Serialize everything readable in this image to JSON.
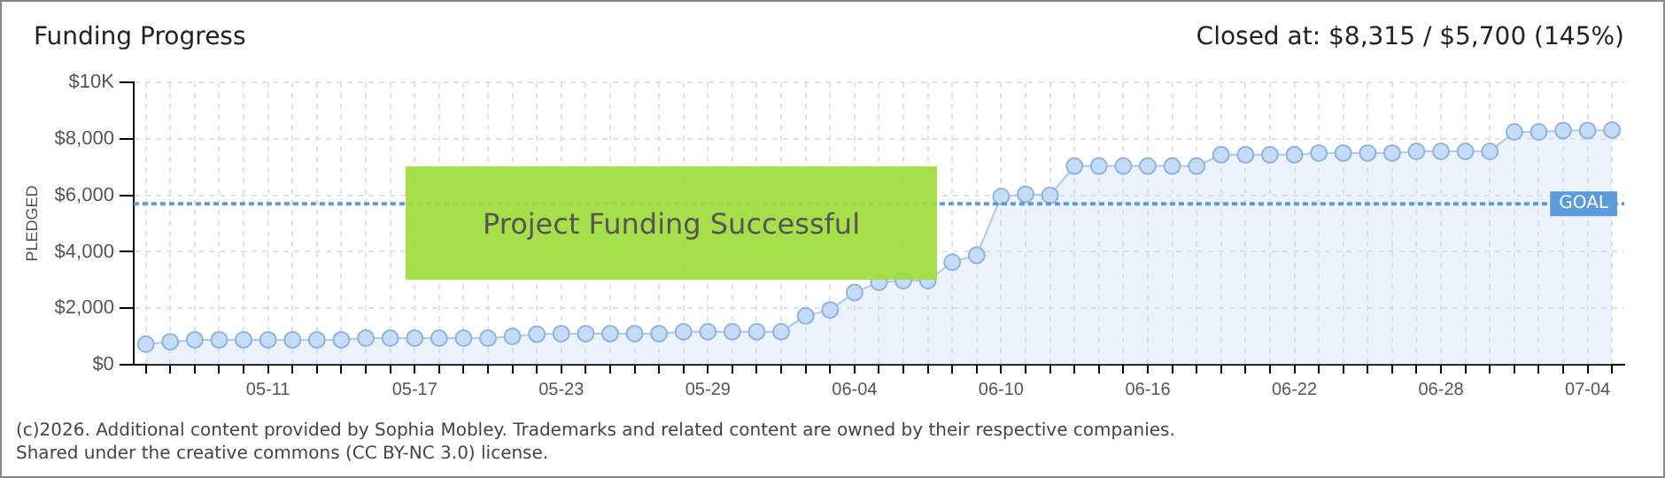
{
  "chart_data": {
    "type": "area",
    "title": "Funding Progress",
    "subtitle": "Closed at: $8,315 / $5,700 (145%)",
    "ylabel": "PLEDGED",
    "categories": [
      null,
      null,
      null,
      null,
      null,
      "05-11",
      null,
      null,
      null,
      null,
      null,
      "05-17",
      null,
      null,
      null,
      null,
      null,
      "05-23",
      null,
      null,
      null,
      null,
      null,
      "05-29",
      null,
      null,
      null,
      null,
      null,
      "06-04",
      null,
      null,
      null,
      null,
      null,
      "06-10",
      null,
      null,
      null,
      null,
      null,
      "06-16",
      null,
      null,
      null,
      null,
      null,
      "06-22",
      null,
      null,
      null,
      null,
      null,
      "06-28",
      null,
      null,
      null,
      null,
      null,
      "07-04",
      null
    ],
    "series": [
      {
        "color": "#a9c9ef",
        "values": [
          730,
          810,
          880,
          880,
          880,
          880,
          880,
          880,
          880,
          940,
          940,
          940,
          940,
          940,
          940,
          1000,
          1080,
          1100,
          1100,
          1100,
          1100,
          1100,
          1170,
          1170,
          1170,
          1170,
          1170,
          1730,
          1940,
          2560,
          2920,
          2980,
          2980,
          3630,
          3880,
          5960,
          6040,
          6000,
          7040,
          7040,
          7040,
          7040,
          7040,
          7040,
          7440,
          7440,
          7440,
          7440,
          7500,
          7500,
          7500,
          7500,
          7560,
          7560,
          7560,
          7560,
          8250,
          8250,
          8300,
          8300,
          8315
        ]
      }
    ],
    "ylim": [
      0,
      10000
    ],
    "yticks": [
      {
        "value": 0,
        "label": "$0"
      },
      {
        "value": 2000,
        "label": "$2,000"
      },
      {
        "value": 4000,
        "label": "$4,000"
      },
      {
        "value": 6000,
        "label": "$6,000"
      },
      {
        "value": 8000,
        "label": "$8,000"
      },
      {
        "value": 10000,
        "label": "$10K"
      }
    ],
    "ref_lines": [
      {
        "axis": "y",
        "value": 5700,
        "label": "GOAL",
        "color": "#5b9bdc",
        "line_style": "dotted"
      }
    ],
    "marker": "circle",
    "grid": true,
    "legend": false,
    "annotations": [
      "Project Funding Successful",
      "(c)2026. Additional content provided by Sophia Mobley. Trademarks and related content are owned by their respective companies.",
      "Shared under the creative commons (CC BY-NC 3.0) license."
    ]
  }
}
